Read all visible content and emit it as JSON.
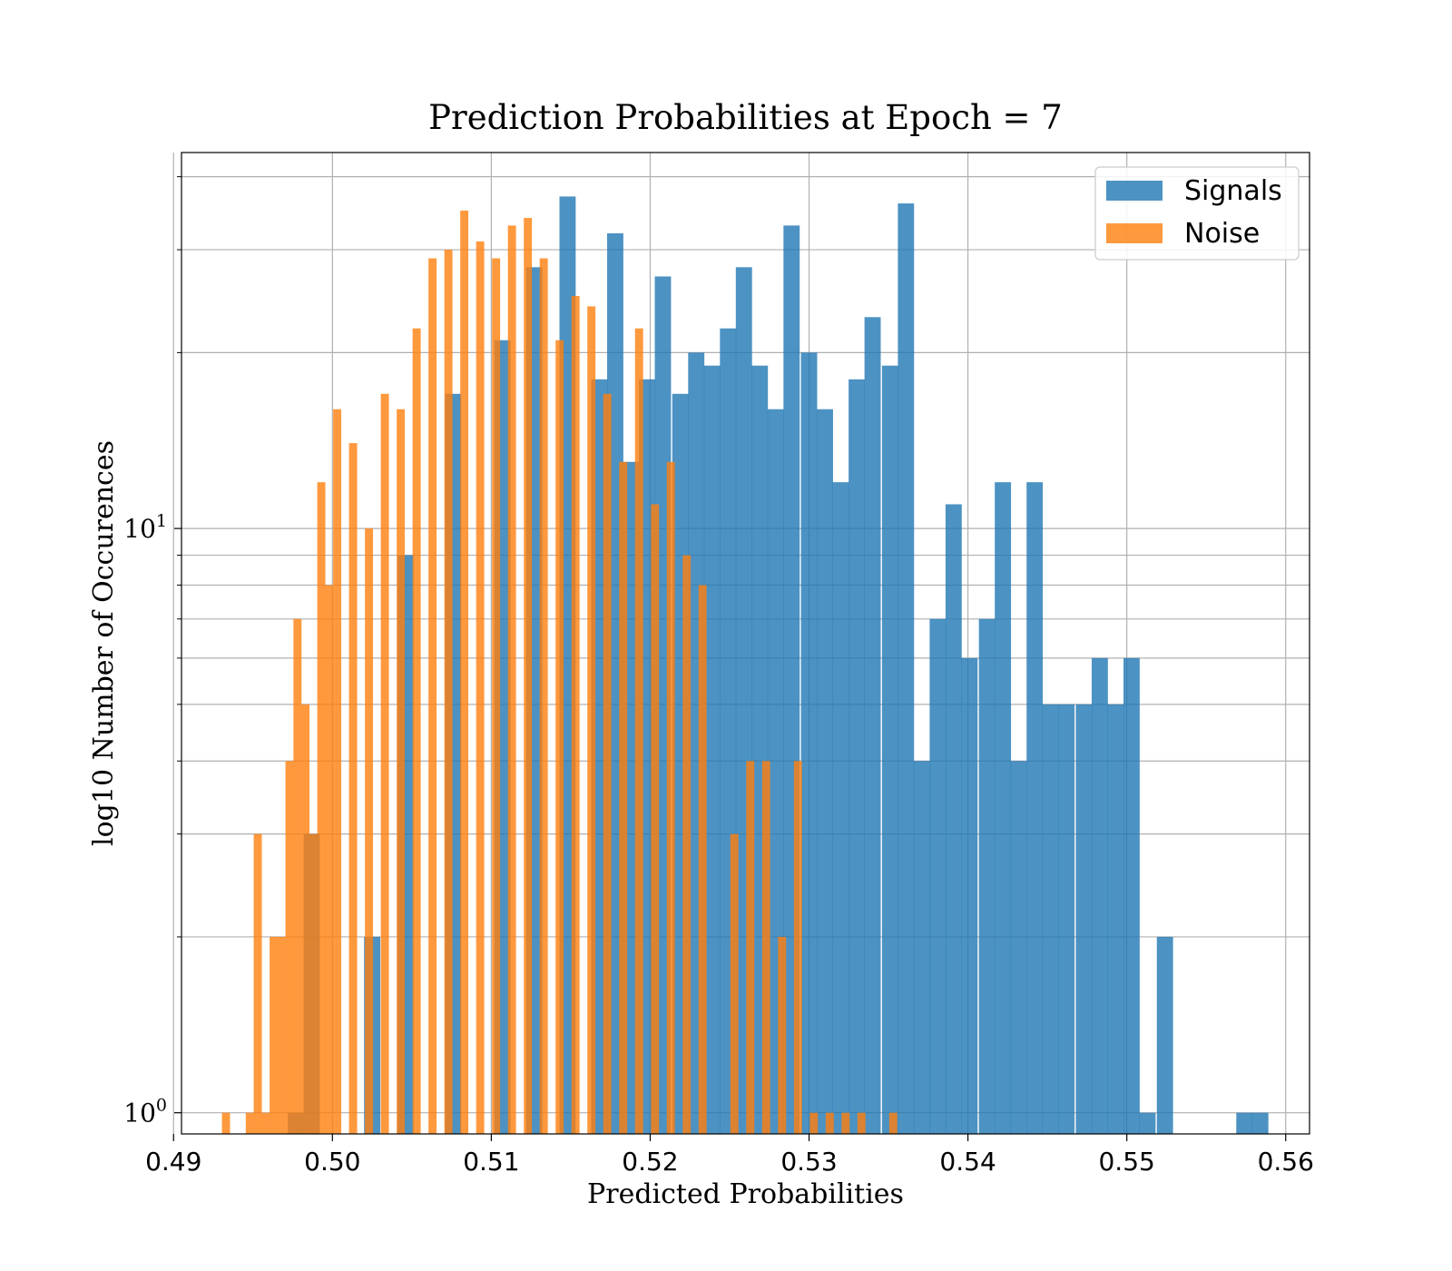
{
  "chart_data": {
    "type": "bar",
    "title": "Prediction Probabilities at Epoch = 7",
    "xlabel": "Predicted Probabilities",
    "ylabel": "log10 Number of Occurences",
    "xlim": [
      0.4905,
      0.5615
    ],
    "ylim": [
      0.92,
      44
    ],
    "yscale": "log",
    "grid": true,
    "legend_position": "top-right",
    "x_ticks": [
      {
        "value": 0.49,
        "label": "0.49"
      },
      {
        "value": 0.5,
        "label": "0.50"
      },
      {
        "value": 0.51,
        "label": "0.51"
      },
      {
        "value": 0.52,
        "label": "0.52"
      },
      {
        "value": 0.53,
        "label": "0.53"
      },
      {
        "value": 0.54,
        "label": "0.54"
      },
      {
        "value": 0.55,
        "label": "0.55"
      },
      {
        "value": 0.56,
        "label": "0.56"
      }
    ],
    "y_major_ticks": [
      {
        "value": 1,
        "base": "10",
        "exp": "0"
      },
      {
        "value": 10,
        "base": "10",
        "exp": "1"
      }
    ],
    "y_minor_ticks": [
      0.9,
      2,
      3,
      4,
      5,
      6,
      7,
      8,
      9,
      20,
      30,
      40
    ],
    "series": [
      {
        "name": "Signals",
        "color": "#1f77b4",
        "bin_width": 0.00102,
        "bins": [
          [
            0.4977,
            1
          ],
          [
            0.4987,
            3
          ],
          [
            0.5025,
            2
          ],
          [
            0.5046,
            9
          ],
          [
            0.5076,
            17
          ],
          [
            0.5107,
            21
          ],
          [
            0.5127,
            28
          ],
          [
            0.5148,
            37
          ],
          [
            0.5168,
            18
          ],
          [
            0.5178,
            32
          ],
          [
            0.5188,
            13
          ],
          [
            0.5198,
            18
          ],
          [
            0.5208,
            27
          ],
          [
            0.5219,
            17
          ],
          [
            0.5229,
            20
          ],
          [
            0.5239,
            19
          ],
          [
            0.5249,
            22
          ],
          [
            0.5259,
            28
          ],
          [
            0.5269,
            19
          ],
          [
            0.5279,
            16
          ],
          [
            0.5289,
            33
          ],
          [
            0.53,
            20
          ],
          [
            0.531,
            16
          ],
          [
            0.532,
            12
          ],
          [
            0.533,
            18
          ],
          [
            0.534,
            23
          ],
          [
            0.5351,
            19
          ],
          [
            0.5361,
            36
          ],
          [
            0.5371,
            4
          ],
          [
            0.5381,
            7
          ],
          [
            0.5391,
            11
          ],
          [
            0.5401,
            6
          ],
          [
            0.5412,
            7
          ],
          [
            0.5422,
            12
          ],
          [
            0.5432,
            4
          ],
          [
            0.5442,
            12
          ],
          [
            0.5452,
            5
          ],
          [
            0.5462,
            5
          ],
          [
            0.5473,
            5
          ],
          [
            0.5483,
            6
          ],
          [
            0.5493,
            5
          ],
          [
            0.5503,
            6
          ],
          [
            0.5513,
            1
          ],
          [
            0.5524,
            2
          ],
          [
            0.5574,
            1
          ],
          [
            0.5584,
            1
          ]
        ]
      },
      {
        "name": "Noise",
        "color": "#ff7f0e",
        "bin_width": 0.00051,
        "bins": [
          [
            0.4933,
            1
          ],
          [
            0.4948,
            1
          ],
          [
            0.4953,
            3
          ],
          [
            0.4958,
            1
          ],
          [
            0.4963,
            2
          ],
          [
            0.4968,
            2
          ],
          [
            0.4973,
            4
          ],
          [
            0.4978,
            7
          ],
          [
            0.4983,
            5
          ],
          [
            0.4988,
            3
          ],
          [
            0.4993,
            12
          ],
          [
            0.4998,
            8
          ],
          [
            0.5003,
            16
          ],
          [
            0.5013,
            14
          ],
          [
            0.5023,
            10
          ],
          [
            0.5033,
            17
          ],
          [
            0.5043,
            16
          ],
          [
            0.5053,
            22
          ],
          [
            0.5063,
            29
          ],
          [
            0.5073,
            30
          ],
          [
            0.5083,
            35
          ],
          [
            0.5093,
            31
          ],
          [
            0.5103,
            29
          ],
          [
            0.5113,
            33
          ],
          [
            0.5123,
            34
          ],
          [
            0.5133,
            29
          ],
          [
            0.5143,
            21
          ],
          [
            0.5153,
            25
          ],
          [
            0.5163,
            24
          ],
          [
            0.5173,
            17
          ],
          [
            0.5183,
            13
          ],
          [
            0.5193,
            22
          ],
          [
            0.5203,
            11
          ],
          [
            0.5213,
            13
          ],
          [
            0.5223,
            9
          ],
          [
            0.5233,
            8
          ],
          [
            0.5253,
            3
          ],
          [
            0.5263,
            4
          ],
          [
            0.5273,
            4
          ],
          [
            0.5283,
            2
          ],
          [
            0.5293,
            4
          ],
          [
            0.5303,
            1
          ],
          [
            0.5313,
            1
          ],
          [
            0.5323,
            1
          ],
          [
            0.5333,
            1
          ],
          [
            0.5353,
            1
          ]
        ]
      }
    ]
  }
}
